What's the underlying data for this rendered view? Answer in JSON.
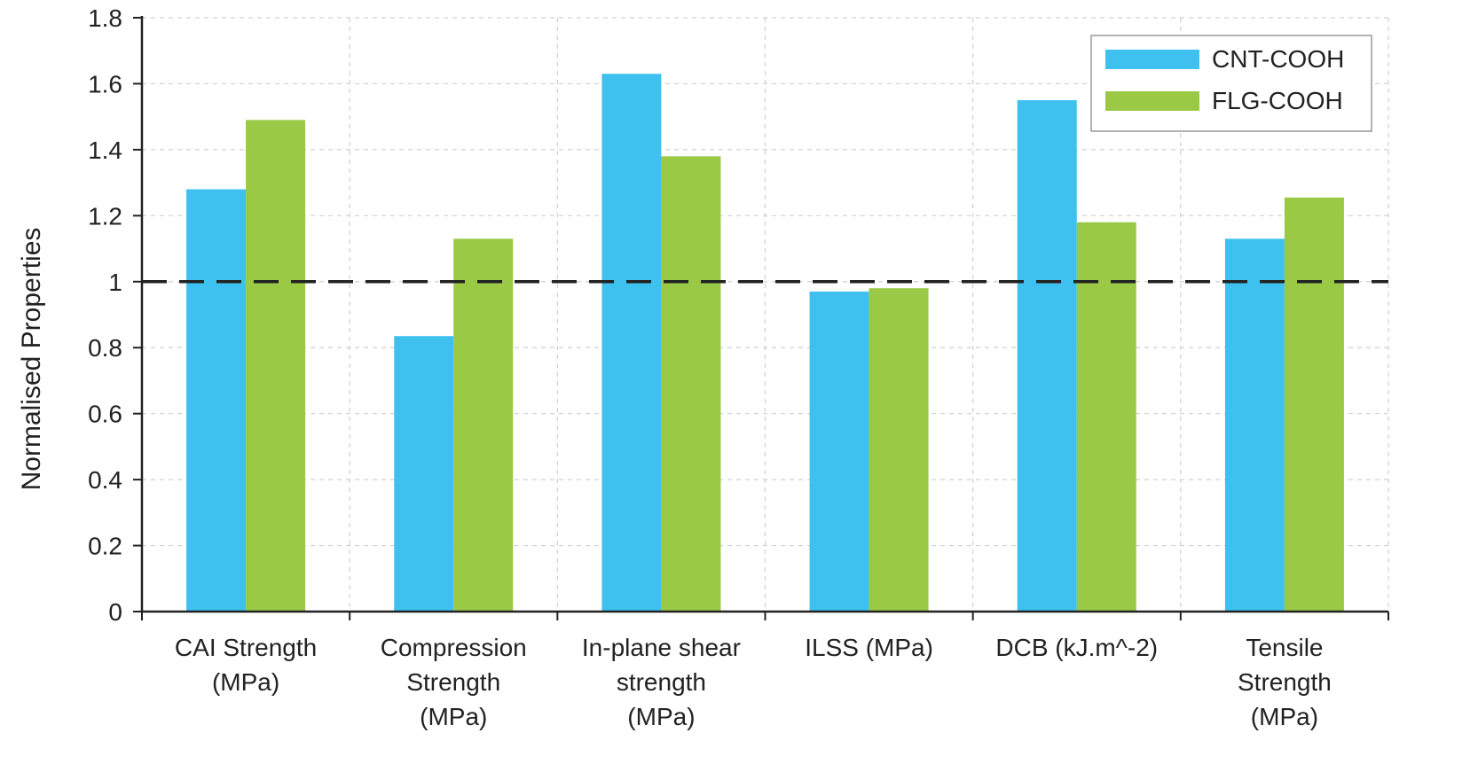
{
  "chart_data": {
    "type": "bar",
    "title": "",
    "xlabel": "",
    "ylabel": "Normalised Properties",
    "ylim": [
      0,
      1.8
    ],
    "yticks": [
      "0",
      "0.2",
      "0.4",
      "0.6",
      "0.8",
      "1",
      "1.2",
      "1.4",
      "1.6",
      "1.8"
    ],
    "ytick_values": [
      0,
      0.2,
      0.4,
      0.6,
      0.8,
      1,
      1.2,
      1.4,
      1.6,
      1.8
    ],
    "categories": [
      [
        "CAI Strength",
        "(MPa)"
      ],
      [
        "Compression",
        "Strength",
        "(MPa)"
      ],
      [
        "In-plane shear",
        "strength",
        "(MPa)"
      ],
      [
        "ILSS (MPa)"
      ],
      [
        "DCB (kJ.m^-2)"
      ],
      [
        "Tensile",
        "Strength",
        "(MPa)"
      ]
    ],
    "series": [
      {
        "name": "CNT-COOH",
        "color": "#3EC1EF",
        "values": [
          1.28,
          0.835,
          1.63,
          0.97,
          1.55,
          1.13
        ]
      },
      {
        "name": "FLG-COOH",
        "color": "#99C945",
        "values": [
          1.49,
          1.13,
          1.38,
          0.98,
          1.18,
          1.255
        ]
      }
    ],
    "reference_line": {
      "value": 1,
      "style": "dashed",
      "color": "#222222"
    },
    "grid": true,
    "legend_position": "top-right"
  }
}
